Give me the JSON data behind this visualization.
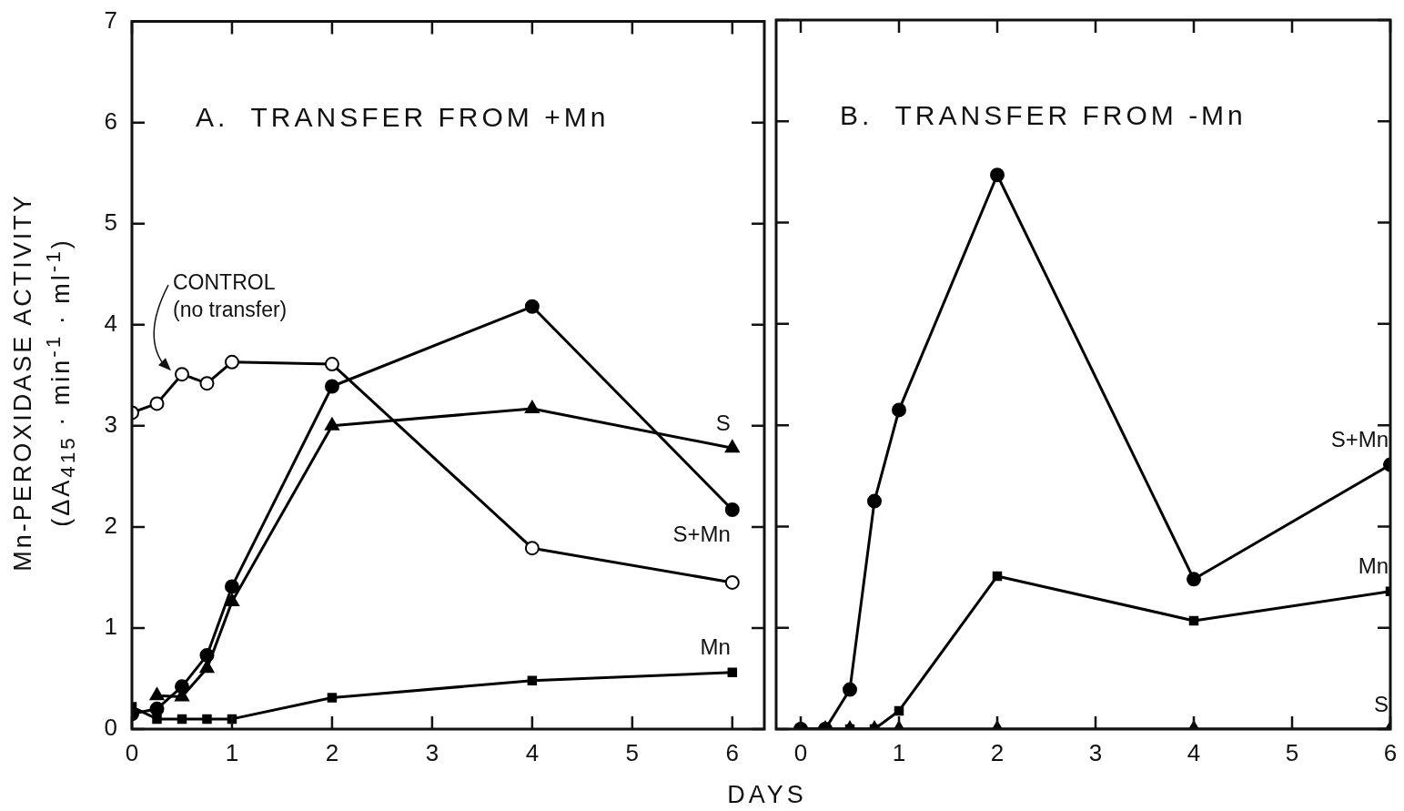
{
  "chart_data": [
    {
      "type": "line",
      "title": "A.  TRANSFER FROM +Mn",
      "ylabel": "Mn-PEROXIDASE ACTIVITY\n(ΔA$_{415}$ · min$^{-1}$ · ml$^{-1}$)",
      "xlabel": "DAYS",
      "xlim": [
        0,
        6.32
      ],
      "xticks": [
        0,
        1,
        2,
        3,
        4,
        5,
        6
      ],
      "ylim": [
        0,
        7
      ],
      "yticks": [
        0,
        1,
        2,
        3,
        4,
        5,
        6,
        7
      ],
      "grid": false,
      "legend": false,
      "annotations": [
        {
          "text": "CONTROL\n(no transfer)",
          "x": 0.5,
          "y": 3.51
        }
      ],
      "series": [
        {
          "color": "#000000",
          "marker": "circle",
          "x": [
            0,
            0.25,
            0.5,
            0.75,
            1,
            2,
            4,
            6
          ],
          "values": [
            3.13,
            3.22,
            3.51,
            3.42,
            3.63,
            3.61,
            1.79,
            1.45
          ]
        },
        {
          "name": "S+Mn",
          "color": "#000000",
          "marker": "circle",
          "x": [
            0,
            0.25,
            0.5,
            0.75,
            1,
            2,
            4,
            6
          ],
          "values": [
            0.15,
            0.2,
            0.42,
            0.73,
            1.41,
            3.39,
            4.18,
            2.17
          ]
        },
        {
          "name": "S",
          "color": "#000000",
          "marker": "triangle",
          "x": [
            0.25,
            0.5,
            0.75,
            1,
            2,
            4,
            6
          ],
          "values": [
            0.33,
            0.32,
            0.6,
            1.26,
            3.0,
            3.17,
            2.78
          ]
        },
        {
          "name": "Mn",
          "color": "#000000",
          "marker": "square",
          "x": [
            0,
            0.25,
            0.5,
            0.75,
            1,
            2,
            4,
            6
          ],
          "values": [
            0.22,
            0.1,
            0.1,
            0.1,
            0.1,
            0.31,
            0.48,
            0.56
          ]
        }
      ]
    },
    {
      "type": "line",
      "title": "B.  TRANSFER FROM -Mn",
      "xlim": [
        -0.25,
        6
      ],
      "xticks": [
        0,
        1,
        2,
        3,
        4,
        5,
        6
      ],
      "ylim": [
        0,
        7
      ],
      "yticks": [
        0,
        1,
        2,
        3,
        4,
        5,
        6,
        7
      ],
      "tick_labels": "x",
      "grid": false,
      "legend": false,
      "series": [
        {
          "name": "S+Mn",
          "color": "#000000",
          "marker": "circle",
          "x": [
            0,
            0.25,
            0.5,
            0.75,
            1,
            2,
            4,
            6
          ],
          "values": [
            0,
            0,
            0.39,
            2.25,
            3.15,
            5.47,
            1.48,
            2.61
          ]
        },
        {
          "name": "S",
          "color": "#000000",
          "marker": "triangle",
          "x": [
            0,
            0.25,
            0.5,
            0.75,
            1,
            2,
            4,
            6
          ],
          "values": [
            0,
            0,
            0,
            0,
            0,
            0,
            0,
            0
          ]
        },
        {
          "name": "Mn",
          "color": "#000000",
          "marker": "square",
          "x": [
            0,
            0.25,
            0.5,
            0.75,
            1,
            2,
            4,
            6
          ],
          "values": [
            0,
            0,
            0,
            0,
            0.18,
            1.51,
            1.07,
            1.36
          ]
        }
      ]
    }
  ]
}
